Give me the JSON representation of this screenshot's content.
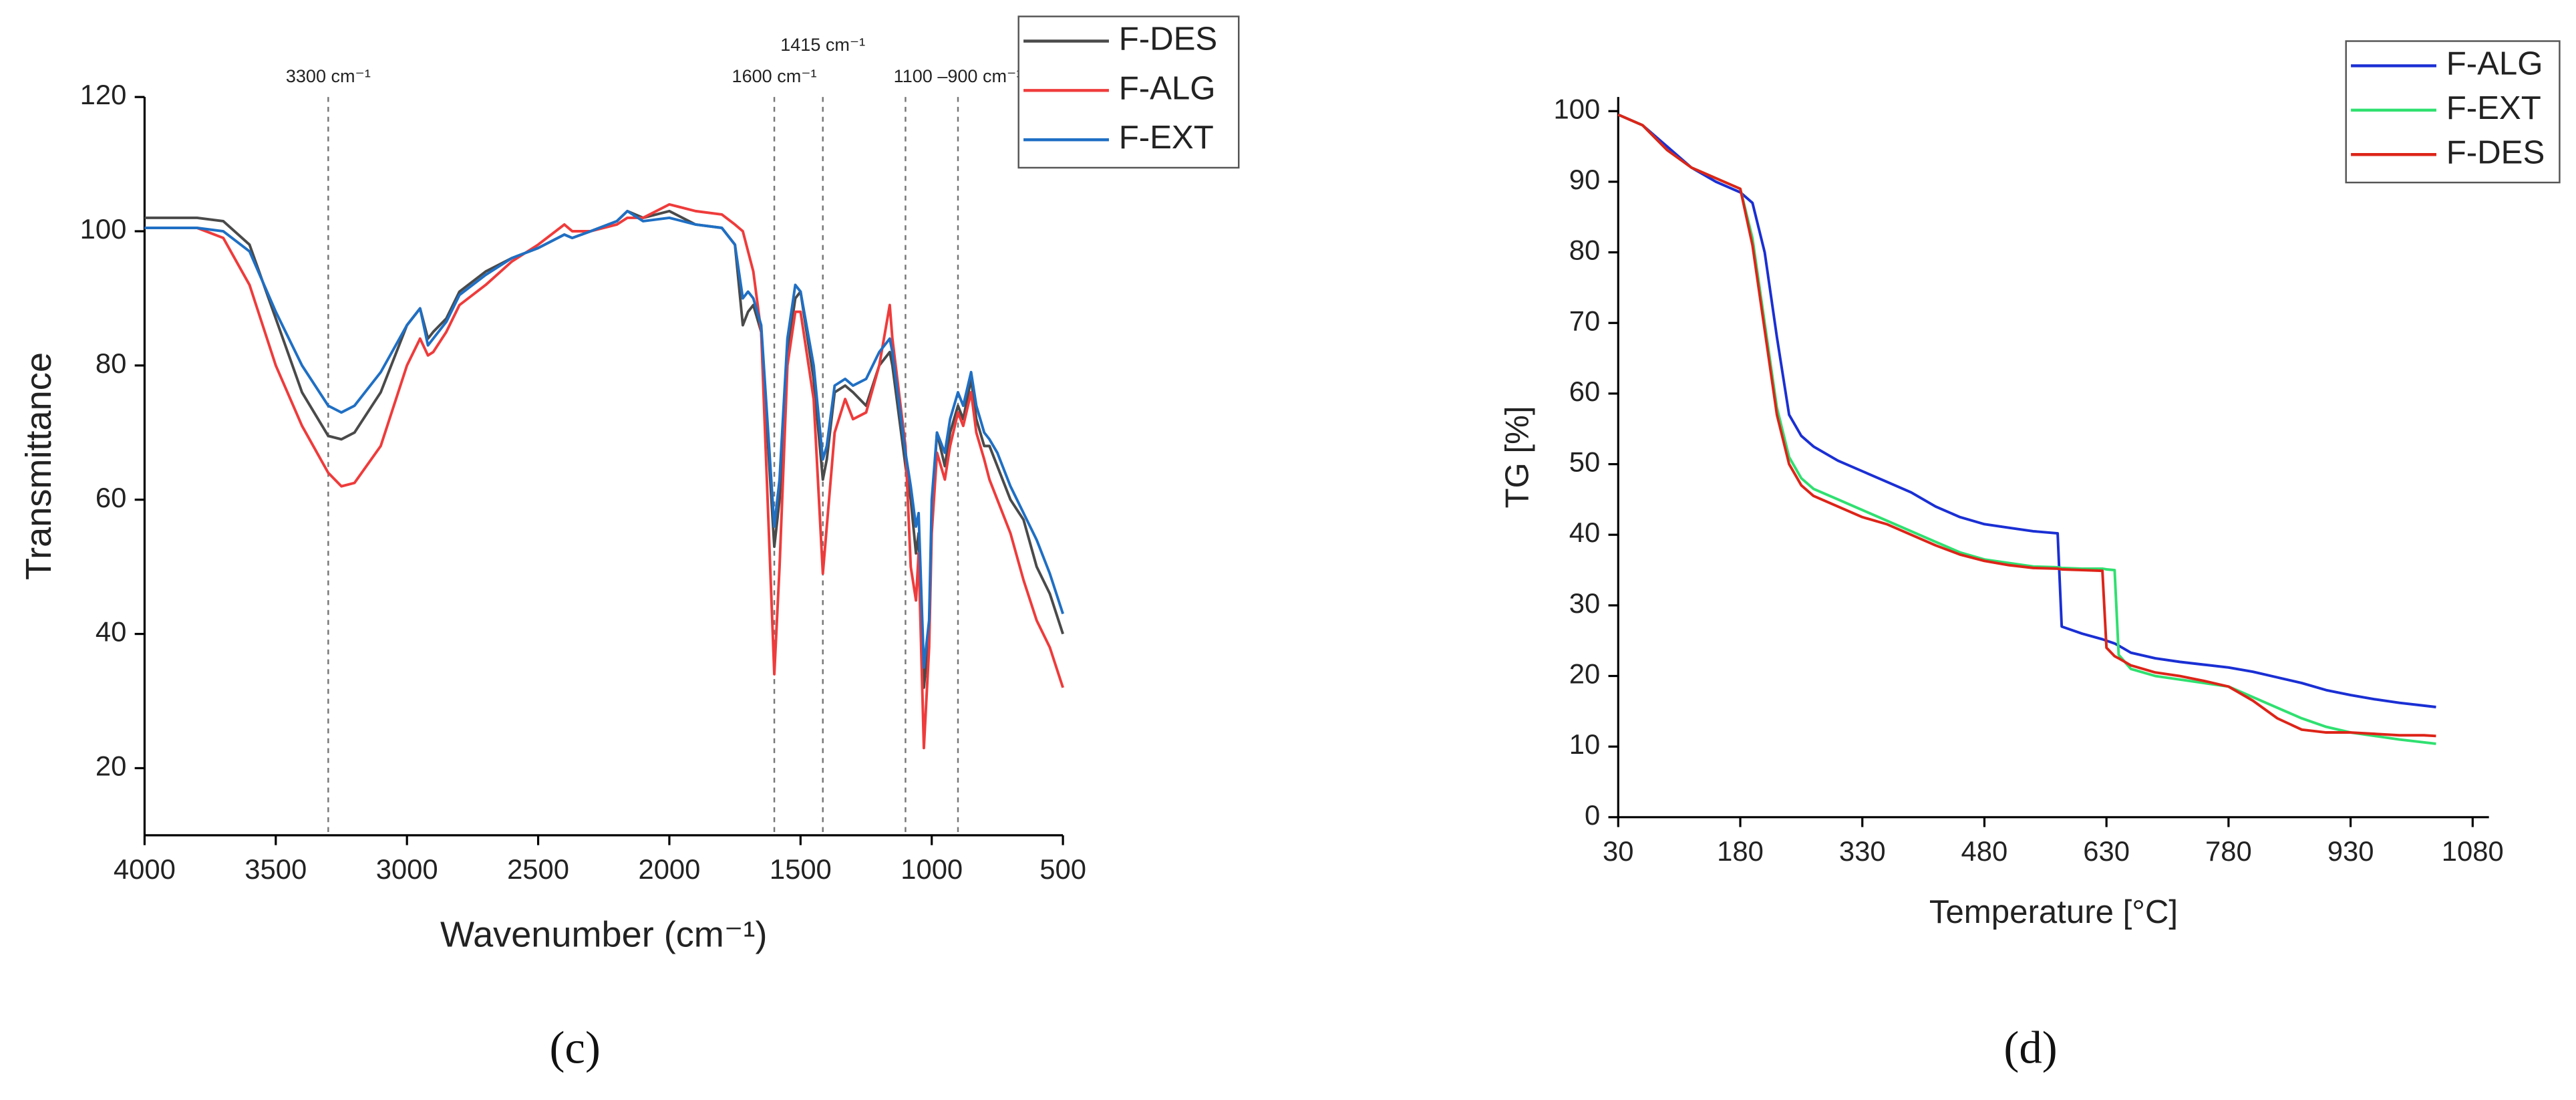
{
  "chart_data": [
    {
      "type": "line",
      "caption": "(c)",
      "xlabel": "Wavenumber (cm⁻¹)",
      "ylabel": "Transmittance",
      "xlim": [
        4000,
        500
      ],
      "ylim": [
        10,
        120
      ],
      "xticks": [
        4000,
        3500,
        3000,
        2500,
        2000,
        1500,
        1000,
        500
      ],
      "yticks": [
        20,
        40,
        60,
        80,
        100,
        120
      ],
      "legend": "top-right",
      "vlines": [
        {
          "x": 3300,
          "label": "3300 cm⁻¹"
        },
        {
          "x": 1600,
          "label": "1600 cm⁻¹"
        },
        {
          "x": 1415,
          "label": "1415 cm⁻¹"
        },
        {
          "x": 1100
        },
        {
          "x": 900,
          "label": "1100 –900 cm⁻¹"
        }
      ],
      "x": [
        4000,
        3800,
        3700,
        3600,
        3500,
        3400,
        3300,
        3250,
        3200,
        3100,
        3000,
        2950,
        2920,
        2900,
        2850,
        2800,
        2700,
        2600,
        2500,
        2400,
        2370,
        2300,
        2200,
        2160,
        2100,
        2000,
        1900,
        1800,
        1750,
        1720,
        1700,
        1680,
        1650,
        1600,
        1580,
        1550,
        1520,
        1500,
        1450,
        1415,
        1400,
        1370,
        1330,
        1300,
        1250,
        1200,
        1160,
        1150,
        1100,
        1080,
        1060,
        1050,
        1030,
        1010,
        1000,
        980,
        950,
        930,
        900,
        880,
        850,
        830,
        800,
        780,
        750,
        700,
        650,
        600,
        550,
        500
      ],
      "series": [
        {
          "name": "F-DES",
          "color": "#4a4a4a",
          "values": [
            102,
            102,
            101.5,
            98,
            87,
            76,
            69.5,
            69,
            70,
            76,
            86,
            88.5,
            84,
            85,
            87,
            91,
            94,
            96,
            97.5,
            99.5,
            99,
            100,
            101.5,
            103,
            102,
            103,
            101,
            100.5,
            98,
            86,
            88,
            89,
            85,
            53,
            60,
            82,
            90,
            91,
            78,
            63,
            66,
            76,
            77,
            76,
            74,
            80,
            82,
            80,
            65,
            60,
            52,
            55,
            32,
            40,
            58,
            70,
            65,
            70,
            74,
            72,
            78,
            72,
            68,
            68,
            65,
            60,
            57,
            50,
            46,
            40
          ]
        },
        {
          "name": "F-ALG",
          "color": "#ef3b3b",
          "values": [
            100.5,
            100.5,
            99,
            92,
            80,
            71,
            64,
            62,
            62.5,
            68,
            80,
            84,
            81.5,
            82,
            85,
            89,
            92,
            95.5,
            98,
            101,
            100,
            100,
            101,
            102,
            102,
            104,
            103,
            102.5,
            101,
            100,
            97,
            94,
            85,
            34,
            50,
            80,
            88,
            88,
            75,
            49,
            56,
            70,
            75,
            72,
            73,
            80,
            89,
            84,
            68,
            50,
            45,
            52,
            23,
            38,
            55,
            67,
            63,
            68,
            73,
            71,
            76,
            70,
            66,
            63,
            60,
            55,
            48,
            42,
            38,
            32
          ]
        },
        {
          "name": "F-EXT",
          "color": "#1f6fc4",
          "values": [
            100.5,
            100.5,
            100,
            97,
            88,
            80,
            74,
            73,
            74,
            79,
            86,
            88.5,
            83,
            84,
            86.5,
            90.5,
            93.5,
            96,
            97.5,
            99.5,
            99,
            100,
            101.5,
            103,
            101.5,
            102,
            101,
            100.5,
            98,
            90,
            91,
            90,
            86,
            56,
            63,
            84,
            92,
            91,
            80,
            66,
            68,
            77,
            78,
            77,
            78,
            82,
            84,
            82,
            67,
            62,
            56,
            58,
            35,
            42,
            60,
            70,
            67,
            72,
            76,
            74,
            79,
            74,
            70,
            69,
            67,
            62,
            58,
            54,
            49,
            43
          ]
        }
      ]
    },
    {
      "type": "line",
      "caption": "(d)",
      "xlabel": "Temperature [°C]",
      "ylabel": "TG [%]",
      "xlim": [
        30,
        1100
      ],
      "ylim": [
        0,
        102
      ],
      "xticks": [
        30,
        180,
        330,
        480,
        630,
        780,
        930,
        1080
      ],
      "yticks": [
        0,
        10,
        20,
        30,
        40,
        50,
        60,
        70,
        80,
        90,
        100
      ],
      "legend": "top-right",
      "x": [
        30,
        60,
        90,
        120,
        150,
        180,
        195,
        210,
        225,
        240,
        255,
        270,
        300,
        330,
        360,
        390,
        420,
        450,
        480,
        510,
        540,
        570,
        575,
        600,
        625,
        630,
        640,
        645,
        660,
        690,
        720,
        750,
        780,
        810,
        840,
        870,
        900,
        930,
        960,
        990,
        1020,
        1035
      ],
      "series": [
        {
          "name": "F-ALG",
          "color": "#1a2fd4",
          "values": [
            99.5,
            98,
            95,
            92,
            90,
            88.5,
            87,
            80,
            68,
            57,
            54,
            52.5,
            50.5,
            49,
            47.5,
            46,
            44,
            42.5,
            41.5,
            41,
            40.5,
            40.2,
            27,
            26,
            25.2,
            25,
            24.6,
            24.3,
            23.3,
            22.5,
            22,
            21.6,
            21.2,
            20.6,
            19.8,
            19,
            18,
            17.3,
            16.7,
            16.2,
            15.8,
            15.6
          ]
        },
        {
          "name": "F-EXT",
          "color": "#2fe070",
          "values": [
            99.5,
            98,
            94.5,
            92,
            90.5,
            89,
            82,
            70,
            58,
            51,
            48,
            46.5,
            45,
            43.5,
            42,
            40.5,
            39,
            37.5,
            36.5,
            36,
            35.5,
            35.4,
            35.3,
            35.2,
            35.2,
            35.1,
            35,
            23,
            21,
            20,
            19.5,
            19,
            18.5,
            17,
            15.5,
            14,
            12.8,
            12,
            11.5,
            11,
            10.6,
            10.4
          ]
        },
        {
          "name": "F-DES",
          "color": "#dd2418",
          "values": [
            99.5,
            98,
            94.5,
            92,
            90.5,
            89,
            81,
            69,
            57,
            50,
            47,
            45.5,
            44,
            42.5,
            41.5,
            40,
            38.5,
            37.2,
            36.3,
            35.7,
            35.3,
            35.2,
            35.1,
            35,
            34.9,
            24,
            22.8,
            22.5,
            21.5,
            20.5,
            20,
            19.3,
            18.5,
            16.5,
            14,
            12.4,
            12,
            12,
            11.8,
            11.6,
            11.6,
            11.5
          ]
        }
      ]
    }
  ]
}
